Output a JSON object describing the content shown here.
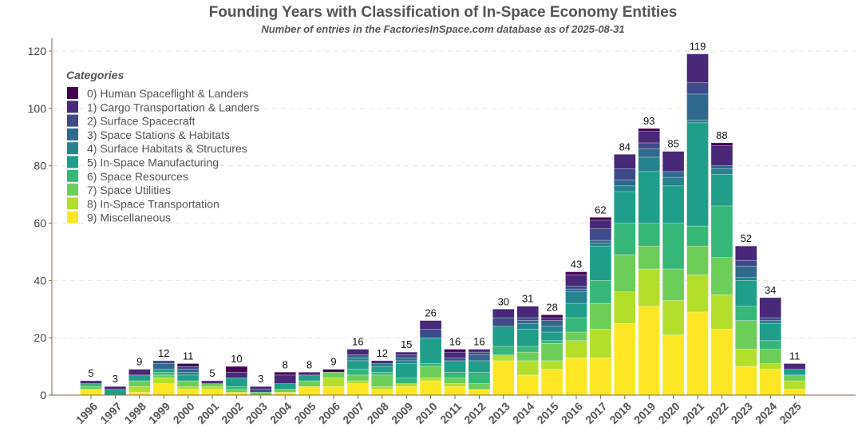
{
  "chart_data": {
    "type": "bar",
    "stacked": true,
    "title": "Founding Years with Classification of In-Space Economy Entities",
    "subtitle": "Number of entries in the FactoriesInSpace.com database as of 2025-08-31",
    "xlabel": "",
    "ylabel": "",
    "ylim": [
      0,
      125
    ],
    "yticks": [
      0,
      20,
      40,
      60,
      80,
      100,
      120
    ],
    "grid": "horizontal dashed",
    "legend": {
      "title": "Categories",
      "placement": "top-left"
    },
    "categories": [
      "1996",
      "1997",
      "1998",
      "1999",
      "2000",
      "2001",
      "2002",
      "2003",
      "2004",
      "2005",
      "2006",
      "2007",
      "2008",
      "2009",
      "2010",
      "2011",
      "2012",
      "2013",
      "2014",
      "2015",
      "2016",
      "2017",
      "2018",
      "2019",
      "2020",
      "2021",
      "2022",
      "2023",
      "2024",
      "2025"
    ],
    "totals": [
      5,
      3,
      9,
      12,
      11,
      5,
      10,
      3,
      8,
      8,
      9,
      16,
      12,
      15,
      26,
      16,
      16,
      30,
      31,
      28,
      43,
      62,
      84,
      93,
      85,
      119,
      88,
      52,
      34,
      11
    ],
    "series": [
      {
        "name": "0)  Human Spaceflight & Landers",
        "color": "#440154",
        "values": [
          0,
          0,
          0,
          0,
          1,
          0,
          2,
          0,
          1,
          0,
          1,
          0,
          0,
          0,
          0,
          1,
          0,
          0,
          0,
          1,
          1,
          1,
          0,
          1,
          0,
          0,
          1,
          0,
          0,
          0
        ]
      },
      {
        "name": "1)  Cargo Transportation & Landers",
        "color": "#482878",
        "values": [
          1,
          1,
          2,
          0,
          0,
          1,
          2,
          1,
          3,
          1,
          0,
          2,
          1,
          1,
          3,
          2,
          1,
          3,
          4,
          1,
          4,
          3,
          5,
          4,
          7,
          10,
          7,
          5,
          7,
          2
        ]
      },
      {
        "name": "2)  Surface Spacecraft",
        "color": "#3E4A89",
        "values": [
          0,
          0,
          0,
          1,
          1,
          0,
          0,
          1,
          0,
          0,
          0,
          0,
          0,
          1,
          3,
          1,
          1,
          3,
          1,
          0,
          1,
          4,
          4,
          2,
          0,
          4,
          0,
          2,
          1,
          0
        ]
      },
      {
        "name": "3)  Space Stations & Habitats",
        "color": "#31688E",
        "values": [
          0,
          0,
          0,
          2,
          1,
          0,
          0,
          0,
          0,
          0,
          0,
          1,
          0,
          1,
          0,
          0,
          2,
          0,
          1,
          2,
          1,
          1,
          2,
          3,
          2,
          9,
          1,
          4,
          0,
          0
        ]
      },
      {
        "name": "4)  Surface Habitats & Structures",
        "color": "#26828E",
        "values": [
          0,
          0,
          0,
          0,
          1,
          0,
          0,
          0,
          0,
          0,
          0,
          1,
          1,
          1,
          0,
          0,
          0,
          0,
          2,
          2,
          4,
          1,
          2,
          5,
          3,
          1,
          2,
          1,
          1,
          0
        ]
      },
      {
        "name": "5)  In-Space Manufacturing",
        "color": "#1F9E89",
        "values": [
          0,
          2,
          2,
          1,
          2,
          0,
          3,
          0,
          2,
          2,
          0,
          3,
          2,
          5,
          9,
          4,
          4,
          7,
          6,
          3,
          5,
          12,
          11,
          18,
          13,
          36,
          11,
          9,
          6,
          2
        ]
      },
      {
        "name": "6)  Space Resources",
        "color": "#35B779",
        "values": [
          1,
          0,
          0,
          1,
          0,
          0,
          1,
          0,
          0,
          0,
          0,
          2,
          1,
          2,
          1,
          2,
          4,
          3,
          2,
          1,
          5,
          8,
          11,
          8,
          16,
          7,
          18,
          5,
          3,
          0
        ]
      },
      {
        "name": "7)  Space Utilities",
        "color": "#6DCD59",
        "values": [
          1,
          0,
          2,
          1,
          2,
          1,
          1,
          1,
          1,
          2,
          2,
          2,
          4,
          0,
          4,
          2,
          2,
          0,
          3,
          6,
          3,
          9,
          13,
          8,
          11,
          10,
          13,
          10,
          5,
          2
        ]
      },
      {
        "name": "8)  In-Space Transportation",
        "color": "#B4DE2C",
        "values": [
          0,
          0,
          2,
          2,
          1,
          1,
          0,
          0,
          0,
          0,
          3,
          1,
          1,
          1,
          1,
          1,
          0,
          2,
          5,
          3,
          6,
          10,
          11,
          13,
          12,
          13,
          12,
          6,
          2,
          3
        ]
      },
      {
        "name": "9)  Miscellaneous",
        "color": "#FDE725",
        "values": [
          2,
          0,
          1,
          4,
          2,
          2,
          1,
          0,
          1,
          3,
          3,
          4,
          2,
          3,
          5,
          3,
          2,
          12,
          7,
          9,
          13,
          13,
          25,
          31,
          21,
          29,
          23,
          10,
          9,
          2
        ]
      }
    ]
  }
}
